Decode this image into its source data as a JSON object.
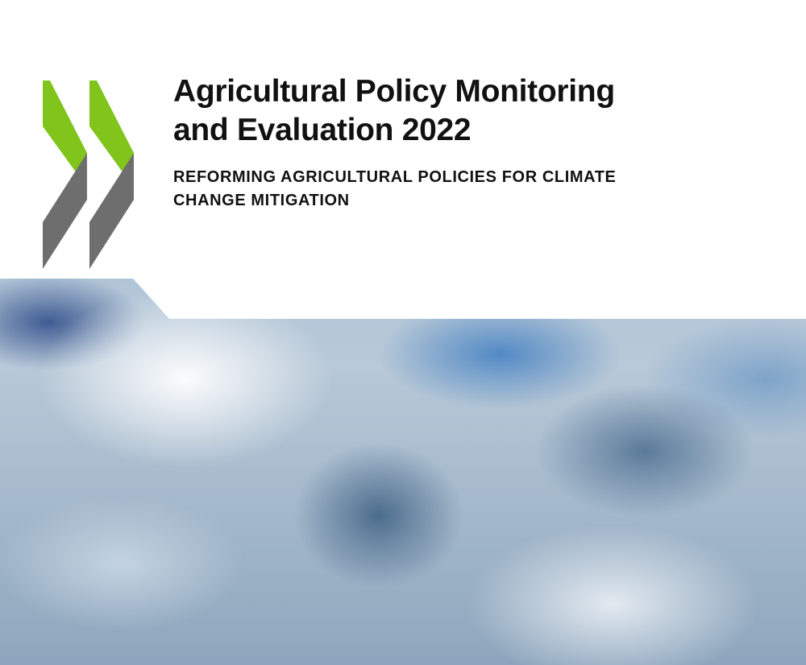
{
  "cover": {
    "title_line1": "Agricultural Policy Monitoring",
    "title_line2": "and Evaluation 2022",
    "subtitle_line1": "REFORMING AGRICULTURAL POLICIES FOR CLIMATE",
    "subtitle_line2": "CHANGE MITIGATION",
    "logo": "oecd-chevrons-logo",
    "colors": {
      "green": "#80c41c",
      "gray": "#6e6e6e",
      "sky_blue": "#4f86c2"
    }
  }
}
